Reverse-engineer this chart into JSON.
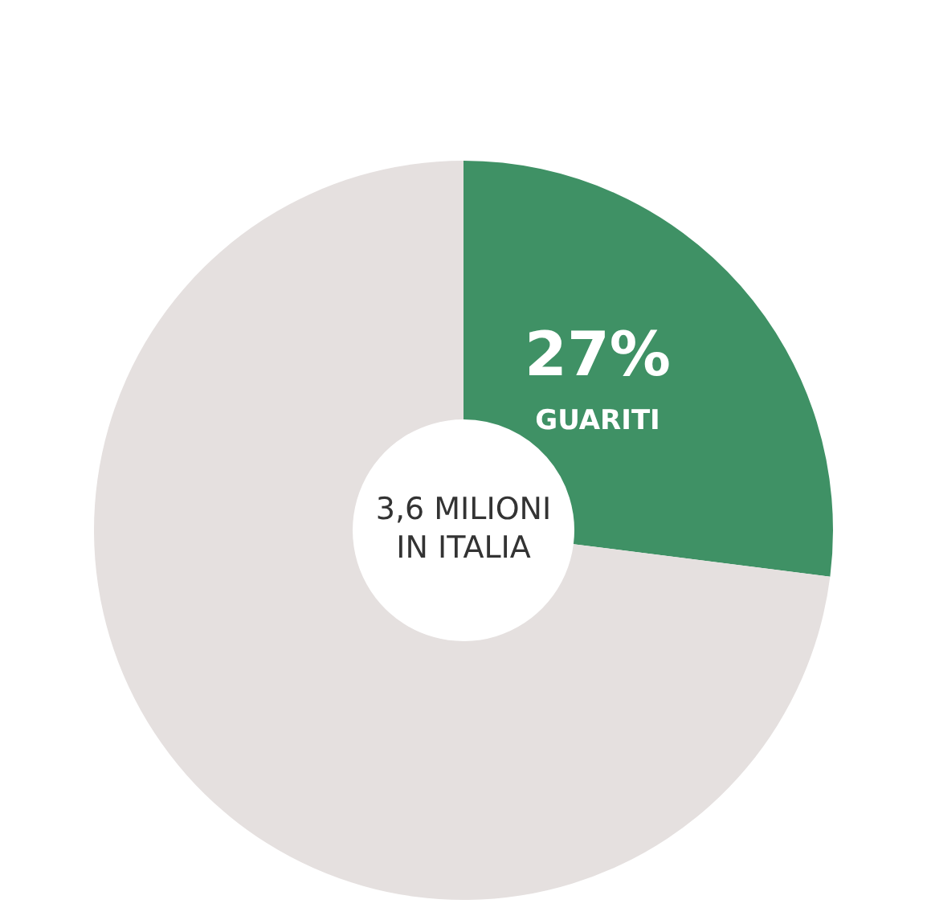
{
  "chart_data": {
    "type": "donut",
    "categories": [
      "GUARITI",
      null
    ],
    "values": [
      27,
      73
    ],
    "colors": [
      "#3f9165",
      "#e5e0df"
    ],
    "value_labels": [
      "27%",
      null
    ],
    "annotations": [
      "3,6 MILIONI\nIN ITALIA"
    ],
    "legend": false
  }
}
